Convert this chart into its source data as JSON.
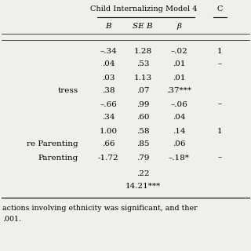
{
  "title": "Child Internalizing Model 4",
  "col_header_right": "C",
  "subheaders": [
    "B",
    "SE B",
    "β"
  ],
  "rows": [
    {
      "label": "",
      "B": "–.34",
      "SEB": "1.28",
      "beta": "–.02",
      "extra": "1"
    },
    {
      "label": "",
      "B": ".04",
      "SEB": ".53",
      "beta": ".01",
      "extra": "–"
    },
    {
      "label": "",
      "B": ".03",
      "SEB": "1.13",
      "beta": ".01",
      "extra": ""
    },
    {
      "label": "tress",
      "B": ".38",
      "SEB": ".07",
      "beta": ".37***",
      "extra": ""
    },
    {
      "label": "",
      "B": "–.66",
      "SEB": ".99",
      "beta": "–.06",
      "extra": "–"
    },
    {
      "label": "",
      "B": ".34",
      "SEB": ".60",
      "beta": ".04",
      "extra": ""
    },
    {
      "label": "",
      "B": "1.00",
      "SEB": ".58",
      "beta": ".14",
      "extra": "1"
    },
    {
      "label": "re Parenting",
      "B": ".66",
      "SEB": ".85",
      "beta": ".06",
      "extra": ""
    },
    {
      "label": "Parenting",
      "B": "-1.72",
      "SEB": ".79",
      "beta": "–.18*",
      "extra": "–"
    }
  ],
  "footer_r2": ".22",
  "footer_f": "14.21***",
  "footnote1": "actions involving ethnicity was significant, and ther",
  "footnote2": ".001.",
  "bg_color": "#f0efea"
}
